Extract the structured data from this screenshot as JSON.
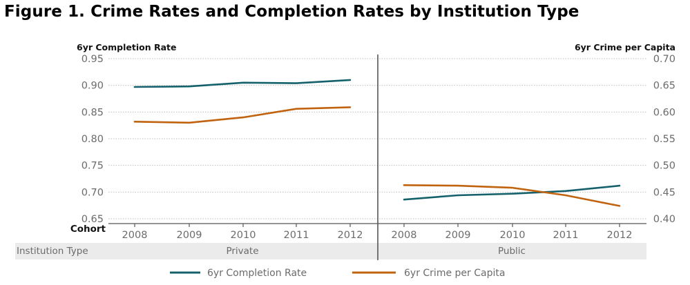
{
  "title": "Figure 1.  Crime Rates and Completion Rates by Institution Type",
  "chart_data": {
    "type": "line",
    "title": "Figure 1.  Crime Rates and Completion Rates by Institution Type",
    "left_axis": {
      "label": "6yr Completion Rate",
      "ylim": [
        0.65,
        0.95
      ],
      "ticks": [
        "0.95",
        "0.90",
        "0.85",
        "0.80",
        "0.75",
        "0.70",
        "0.65"
      ],
      "tick_values": [
        0.95,
        0.9,
        0.85,
        0.8,
        0.75,
        0.7,
        0.65
      ]
    },
    "right_axis": {
      "label": "6yr Crime per Capita",
      "ylim": [
        0.4,
        0.7
      ],
      "ticks": [
        "0.70",
        "0.65",
        "0.60",
        "0.55",
        "0.50",
        "0.45",
        "0.40"
      ],
      "tick_values": [
        0.7,
        0.65,
        0.6,
        0.55,
        0.5,
        0.45,
        0.4
      ]
    },
    "xlabel": "Cohort",
    "row_label": "Institution Type",
    "grid": true,
    "legend_position": "bottom",
    "panels": [
      {
        "name": "Private",
        "categories": [
          "2008",
          "2009",
          "2010",
          "2011",
          "2012"
        ],
        "series": [
          {
            "name": "6yr Completion Rate",
            "axis": "left",
            "values": [
              0.897,
              0.898,
              0.905,
              0.904,
              0.91
            ]
          },
          {
            "name": "6yr Crime per Capita",
            "axis": "right",
            "values": [
              0.582,
              0.58,
              0.59,
              0.606,
              0.609
            ]
          }
        ]
      },
      {
        "name": "Public",
        "categories": [
          "2008",
          "2009",
          "2010",
          "2011",
          "2012"
        ],
        "series": [
          {
            "name": "6yr Completion Rate",
            "axis": "left",
            "values": [
              0.686,
              0.694,
              0.697,
              0.702,
              0.712
            ]
          },
          {
            "name": "6yr Crime per Capita",
            "axis": "right",
            "values": [
              0.463,
              0.462,
              0.458,
              0.444,
              0.424
            ]
          }
        ]
      }
    ],
    "legend": [
      {
        "name": "6yr Completion Rate",
        "color": "#14616B"
      },
      {
        "name": "6yr Crime per Capita",
        "color": "#C0620E"
      }
    ],
    "colors": {
      "completion": "#14616B",
      "crime": "#C0620E",
      "band": "#EBEBEB",
      "grid": "#BDBDBD",
      "axis": "#555555"
    }
  }
}
